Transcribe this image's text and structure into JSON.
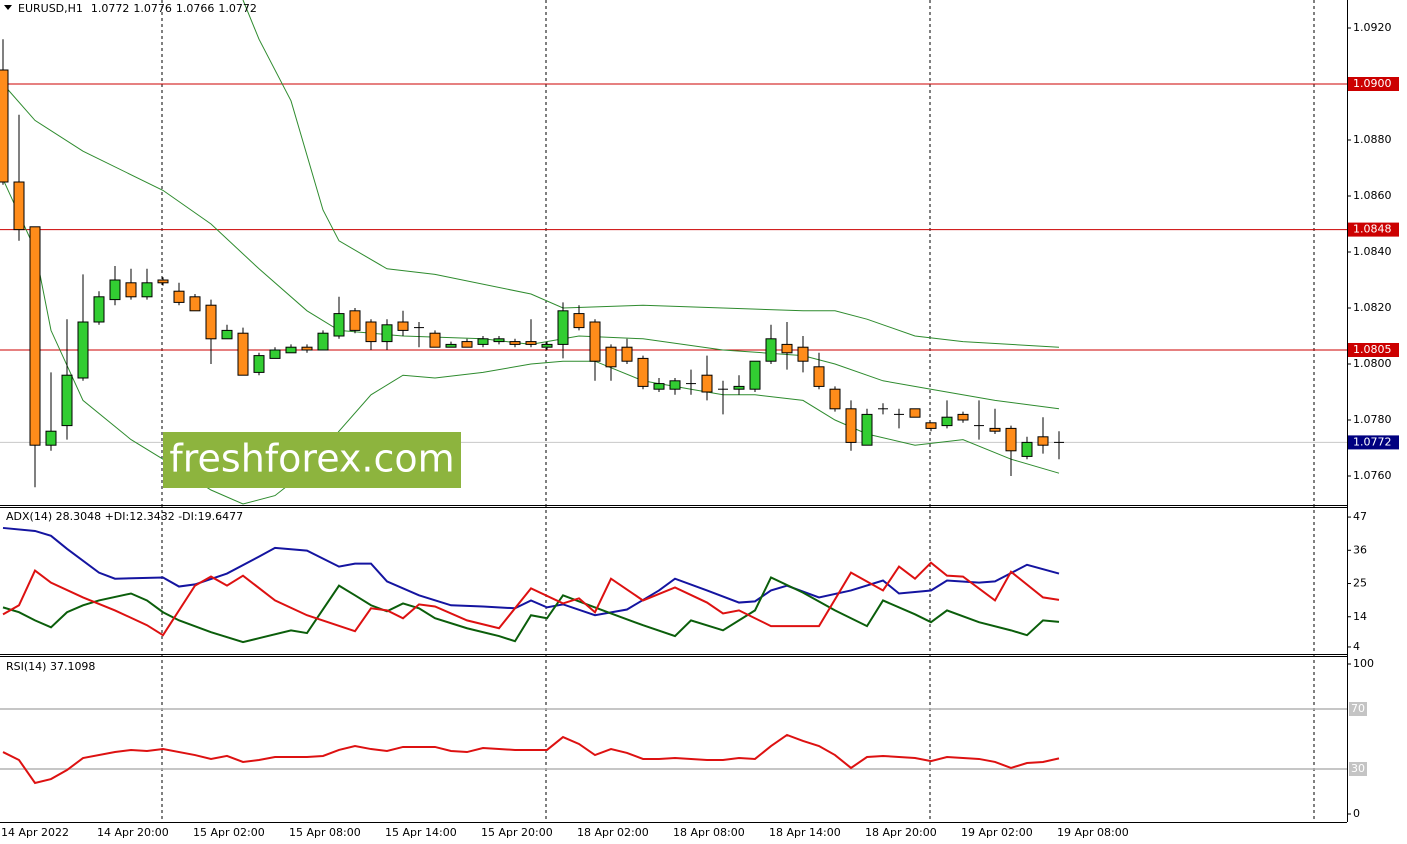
{
  "chart_data": [
    {
      "type": "candlestick",
      "title": "EURUSD,H1",
      "header_values": [
        {
          "value": 1.0772,
          "label": "1.0772"
        },
        {
          "value": 1.0776,
          "label": "1.0776"
        },
        {
          "value": 1.0766,
          "label": "1.0766"
        },
        {
          "value": 1.0772,
          "label": "1.0772"
        }
      ],
      "categories": [
        "14 Apr 2022",
        null,
        null,
        null,
        null,
        null,
        "14 Apr 20:00",
        null,
        null,
        null,
        null,
        null,
        "15 Apr 02:00",
        null,
        null,
        null,
        null,
        null,
        "15 Apr 08:00",
        null,
        null,
        null,
        null,
        null,
        "15 Apr 14:00",
        null,
        null,
        null,
        null,
        null,
        "15 Apr 20:00",
        null,
        null,
        null,
        null,
        null,
        "18 Apr 02:00",
        null,
        null,
        null,
        null,
        null,
        "18 Apr 08:00",
        null,
        null,
        null,
        null,
        null,
        "18 Apr 14:00",
        null,
        null,
        null,
        null,
        null,
        "18 Apr 20:00",
        null,
        null,
        null,
        null,
        null,
        "19 Apr 02:00",
        null,
        null,
        null,
        null,
        null,
        "19 Apr 08:00"
      ],
      "open": [
        1.0905,
        1.0865,
        1.0849,
        1.0771,
        1.0778,
        1.0795,
        1.0815,
        1.0823,
        1.0829,
        1.0824,
        1.083,
        1.0826,
        1.0824,
        1.0821,
        1.0809,
        1.0811,
        1.0797,
        1.0802,
        1.0804,
        1.0806,
        1.0805,
        1.081,
        1.0819,
        1.0815,
        1.0808,
        1.0815,
        1.0813,
        1.0811,
        1.0806,
        1.0808,
        1.0807,
        1.0808,
        1.0808,
        1.0808,
        1.0806,
        1.0807,
        1.0818,
        1.0815,
        1.0806,
        1.0806,
        1.0802,
        1.0791,
        1.0791,
        1.0793,
        1.0796,
        1.0791,
        1.0791,
        1.0791,
        1.0801,
        1.0807,
        1.0806,
        1.0799,
        1.0791,
        1.0784,
        1.0771,
        1.0784,
        1.0782,
        1.0784,
        1.0779,
        1.0778,
        1.0782,
        1.0778,
        1.0777,
        1.0777,
        1.0767,
        1.0774,
        1.0772
      ],
      "high": [
        1.0916,
        1.0889,
        1.0849,
        1.0797,
        1.0816,
        1.0832,
        1.0826,
        1.0835,
        1.0834,
        1.0834,
        1.0831,
        1.0829,
        1.0825,
        1.0823,
        1.0814,
        1.0813,
        1.0804,
        1.0806,
        1.0807,
        1.0807,
        1.0812,
        1.0824,
        1.082,
        1.0816,
        1.0816,
        1.0819,
        1.0815,
        1.0812,
        1.0808,
        1.0809,
        1.081,
        1.081,
        1.0809,
        1.0816,
        1.0808,
        1.0822,
        1.0821,
        1.0816,
        1.0807,
        1.0809,
        1.0803,
        1.0795,
        1.0795,
        1.0798,
        1.0803,
        1.0794,
        1.0796,
        1.0801,
        1.0814,
        1.0815,
        1.081,
        1.0804,
        1.0792,
        1.0787,
        1.0784,
        1.0786,
        1.0784,
        1.0784,
        1.0779,
        1.0787,
        1.0783,
        1.0787,
        1.0784,
        1.0778,
        1.0774,
        1.0781,
        1.0776
      ],
      "low": [
        1.0864,
        1.0844,
        1.0756,
        1.0769,
        1.0773,
        1.0794,
        1.0814,
        1.0821,
        1.0823,
        1.0823,
        1.0828,
        1.0821,
        1.0819,
        1.08,
        1.0809,
        1.0796,
        1.0796,
        1.0802,
        1.0804,
        1.0804,
        1.0805,
        1.0809,
        1.0811,
        1.0805,
        1.0805,
        1.081,
        1.0806,
        1.0806,
        1.0806,
        1.0806,
        1.0806,
        1.0807,
        1.0806,
        1.0806,
        1.0805,
        1.0802,
        1.0812,
        1.0794,
        1.0794,
        1.08,
        1.0791,
        1.079,
        1.0789,
        1.0789,
        1.0787,
        1.0782,
        1.0789,
        1.079,
        1.08,
        1.0798,
        1.0797,
        1.0791,
        1.0783,
        1.0769,
        1.0771,
        1.0782,
        1.0777,
        1.0781,
        1.0776,
        1.0777,
        1.0779,
        1.0773,
        1.0775,
        1.076,
        1.0766,
        1.0768,
        1.0766
      ],
      "close": [
        1.0865,
        1.0848,
        1.0771,
        1.0776,
        1.0796,
        1.0815,
        1.0824,
        1.083,
        1.0824,
        1.0829,
        1.0829,
        1.0822,
        1.0819,
        1.0809,
        1.0812,
        1.0796,
        1.0803,
        1.0805,
        1.0806,
        1.0805,
        1.0811,
        1.0818,
        1.0812,
        1.0808,
        1.0814,
        1.0812,
        1.0813,
        1.0806,
        1.0807,
        1.0806,
        1.0809,
        1.0809,
        1.0807,
        1.0807,
        1.0807,
        1.0819,
        1.0813,
        1.0801,
        1.0799,
        1.0801,
        1.0792,
        1.0793,
        1.0794,
        1.0793,
        1.079,
        1.0791,
        1.0792,
        1.0801,
        1.0809,
        1.0804,
        1.0801,
        1.0792,
        1.0784,
        1.0772,
        1.0782,
        1.0784,
        1.0782,
        1.0781,
        1.0777,
        1.0781,
        1.078,
        1.0778,
        1.0776,
        1.0769,
        1.0772,
        1.0771,
        1.0772
      ],
      "up_color": "#32cd32",
      "down_color": "#ff8c1a",
      "wick_color": "#000000",
      "series": [
        {
          "color": "#2e8b2e",
          "x": [
            15,
            16,
            18,
            20,
            21,
            24,
            27,
            33,
            35,
            40,
            45,
            50,
            52,
            54,
            57,
            60,
            66
          ],
          "values": [
            1.093,
            1.0916,
            1.0894,
            1.0855,
            1.0844,
            1.0834,
            1.0832,
            1.0825,
            1.082,
            1.0821,
            1.082,
            1.0819,
            1.0819,
            1.0816,
            1.081,
            1.0808,
            1.0806
          ]
        },
        {
          "color": "#2e8b2e",
          "x": [
            0,
            2,
            5,
            10,
            13,
            16,
            19,
            21,
            25,
            30,
            33,
            36,
            40,
            45,
            50,
            52,
            55,
            58,
            62,
            66
          ],
          "values": [
            1.09,
            1.0887,
            1.0876,
            1.0862,
            1.085,
            1.0834,
            1.0819,
            1.0812,
            1.081,
            1.0809,
            1.0807,
            1.081,
            1.0809,
            1.0805,
            1.0803,
            1.08,
            1.0794,
            1.0791,
            1.0787,
            1.0784
          ]
        },
        {
          "color": "#2e8b2e",
          "x": [
            0,
            2,
            3,
            5,
            8,
            10,
            13,
            15,
            17,
            19,
            21,
            23,
            25,
            27,
            30,
            33,
            35,
            37,
            40,
            43,
            45,
            47,
            50,
            52,
            54,
            57,
            60,
            63,
            66
          ],
          "values": [
            1.0866,
            1.0841,
            1.0812,
            1.0787,
            1.0773,
            1.0766,
            1.0755,
            1.075,
            1.0753,
            1.0762,
            1.0776,
            1.0789,
            1.0796,
            1.0795,
            1.0797,
            1.08,
            1.0801,
            1.0801,
            1.0794,
            1.0791,
            1.0789,
            1.0789,
            1.0787,
            1.078,
            1.0775,
            1.0771,
            1.0773,
            1.0766,
            1.0761
          ]
        }
      ],
      "hlines": [
        {
          "value": 1.09,
          "label": "1.0900"
        },
        {
          "value": 1.0848,
          "label": "1.0848"
        },
        {
          "value": 1.0805,
          "label": "1.0805"
        }
      ],
      "hline_color": "#cc0000",
      "last_price": {
        "value": 1.0772,
        "label": "1.0772"
      },
      "ylim": [
        1.075,
        1.093
      ],
      "yticks": [
        {
          "value": 1.092,
          "label": "1.0920"
        },
        {
          "value": 1.088,
          "label": "1.0880"
        },
        {
          "value": 1.086,
          "label": "1.0860"
        },
        {
          "value": 1.084,
          "label": "1.0840"
        },
        {
          "value": 1.082,
          "label": "1.0820"
        },
        {
          "value": 1.08,
          "label": "1.0800"
        },
        {
          "value": 1.078,
          "label": "1.0780"
        },
        {
          "value": 1.076,
          "label": "1.0760"
        }
      ],
      "watermark": "freshforex.com"
    },
    {
      "type": "line",
      "title": "ADX(14) 28.3048 +DI:12.3432 -DI:19.6477",
      "series": [
        {
          "color": "#1414a0",
          "x": [
            0,
            2,
            3,
            4,
            6,
            7,
            10,
            11,
            12,
            14,
            16,
            17,
            19,
            21,
            22,
            23,
            24,
            26,
            28,
            30,
            32,
            33,
            34,
            35,
            37,
            39,
            41,
            42,
            44,
            46,
            47,
            48,
            49,
            51,
            53,
            55,
            56,
            58,
            59,
            61,
            62,
            64,
            66
          ],
          "values": [
            43.4,
            42.4,
            40.8,
            36.5,
            28.6,
            26.6,
            27.0,
            24.0,
            24.7,
            28.3,
            33.9,
            36.8,
            35.9,
            30.6,
            31.6,
            31.6,
            25.7,
            21.1,
            17.8,
            17.4,
            16.8,
            19.4,
            17.1,
            18.1,
            14.5,
            16.4,
            22.7,
            26.6,
            22.7,
            18.7,
            19.1,
            22.7,
            24.3,
            20.4,
            22.7,
            26.0,
            21.7,
            22.7,
            26.0,
            25.3,
            25.7,
            31.2,
            28.3
          ]
        },
        {
          "color": "#0b5e0b",
          "x": [
            0,
            1,
            2,
            3,
            4,
            5,
            6,
            8,
            9,
            10,
            11,
            13,
            15,
            16,
            18,
            19,
            21,
            22,
            23,
            24,
            25,
            26,
            27,
            29,
            31,
            32,
            33,
            34,
            35,
            37,
            38,
            40,
            42,
            43,
            45,
            47,
            48,
            50,
            52,
            54,
            55,
            57,
            58,
            59,
            61,
            63,
            64,
            65,
            66
          ],
          "values": [
            17.1,
            15.5,
            12.8,
            10.5,
            15.5,
            17.8,
            19.4,
            21.7,
            19.4,
            15.5,
            12.8,
            8.9,
            5.6,
            6.9,
            9.5,
            8.6,
            24.3,
            21.1,
            17.8,
            15.8,
            18.4,
            16.8,
            13.5,
            10.2,
            7.6,
            5.9,
            14.5,
            13.5,
            21.1,
            17.1,
            15.1,
            11.2,
            7.6,
            12.8,
            9.5,
            16.1,
            27.0,
            22.0,
            16.1,
            10.9,
            19.4,
            14.8,
            12.2,
            16.1,
            12.2,
            9.5,
            7.9,
            12.8,
            12.3
          ]
        },
        {
          "color": "#dd1111",
          "x": [
            0,
            1,
            2,
            3,
            5,
            7,
            9,
            10,
            12,
            13,
            14,
            15,
            17,
            19,
            22,
            23,
            24,
            25,
            26,
            27,
            29,
            31,
            33,
            35,
            36,
            37,
            38,
            40,
            42,
            44,
            45,
            46,
            48,
            51,
            53,
            55,
            56,
            57,
            58,
            59,
            60,
            62,
            63,
            65,
            66
          ],
          "values": [
            14.8,
            17.8,
            29.3,
            25.3,
            20.4,
            16.1,
            11.2,
            7.9,
            24.3,
            27.3,
            24.3,
            27.6,
            19.4,
            14.5,
            9.2,
            16.8,
            16.1,
            13.5,
            18.1,
            17.4,
            12.8,
            10.2,
            23.4,
            18.4,
            20.1,
            15.5,
            26.6,
            19.4,
            23.7,
            18.7,
            15.1,
            16.1,
            10.9,
            10.9,
            28.6,
            22.7,
            30.6,
            26.6,
            31.9,
            27.6,
            27.3,
            19.4,
            28.9,
            20.4,
            19.6
          ]
        }
      ],
      "ylim": [
        2,
        50
      ],
      "yticks": [
        4,
        14,
        25,
        36,
        47
      ]
    },
    {
      "type": "line",
      "title": "RSI(14) 37.1098",
      "series": [
        {
          "color": "#dd1111",
          "x": [
            0,
            1,
            2,
            3,
            4,
            5,
            7,
            8,
            9,
            10,
            12,
            13,
            14,
            15,
            16,
            17,
            19,
            20,
            21,
            22,
            23,
            24,
            25,
            26,
            27,
            28,
            29,
            30,
            31,
            32,
            34,
            35,
            36,
            37,
            38,
            39,
            40,
            41,
            42,
            44,
            45,
            46,
            47,
            48,
            49,
            50,
            51,
            52,
            53,
            54,
            55,
            56,
            57,
            58,
            59,
            60,
            61,
            62,
            63,
            64,
            65,
            66
          ],
          "values": [
            41.3,
            36.0,
            20.7,
            23.3,
            29.3,
            37.3,
            41.3,
            42.7,
            42.0,
            43.3,
            39.3,
            36.7,
            38.7,
            34.7,
            36.0,
            38.0,
            38.0,
            38.7,
            42.7,
            45.3,
            43.3,
            42.0,
            44.7,
            44.7,
            44.7,
            42.0,
            41.3,
            44.0,
            43.3,
            42.7,
            42.7,
            51.3,
            46.7,
            39.3,
            43.3,
            40.7,
            36.7,
            36.7,
            37.3,
            36.0,
            36.0,
            37.3,
            36.7,
            45.3,
            52.7,
            48.7,
            45.3,
            39.3,
            30.7,
            38.0,
            38.7,
            38.0,
            37.3,
            35.3,
            38.0,
            37.3,
            36.7,
            34.7,
            30.7,
            34.0,
            34.7,
            37.1
          ]
        }
      ],
      "levels": [
        70,
        30
      ],
      "ylim": [
        0,
        100
      ],
      "yticks": [
        0,
        100
      ]
    }
  ]
}
